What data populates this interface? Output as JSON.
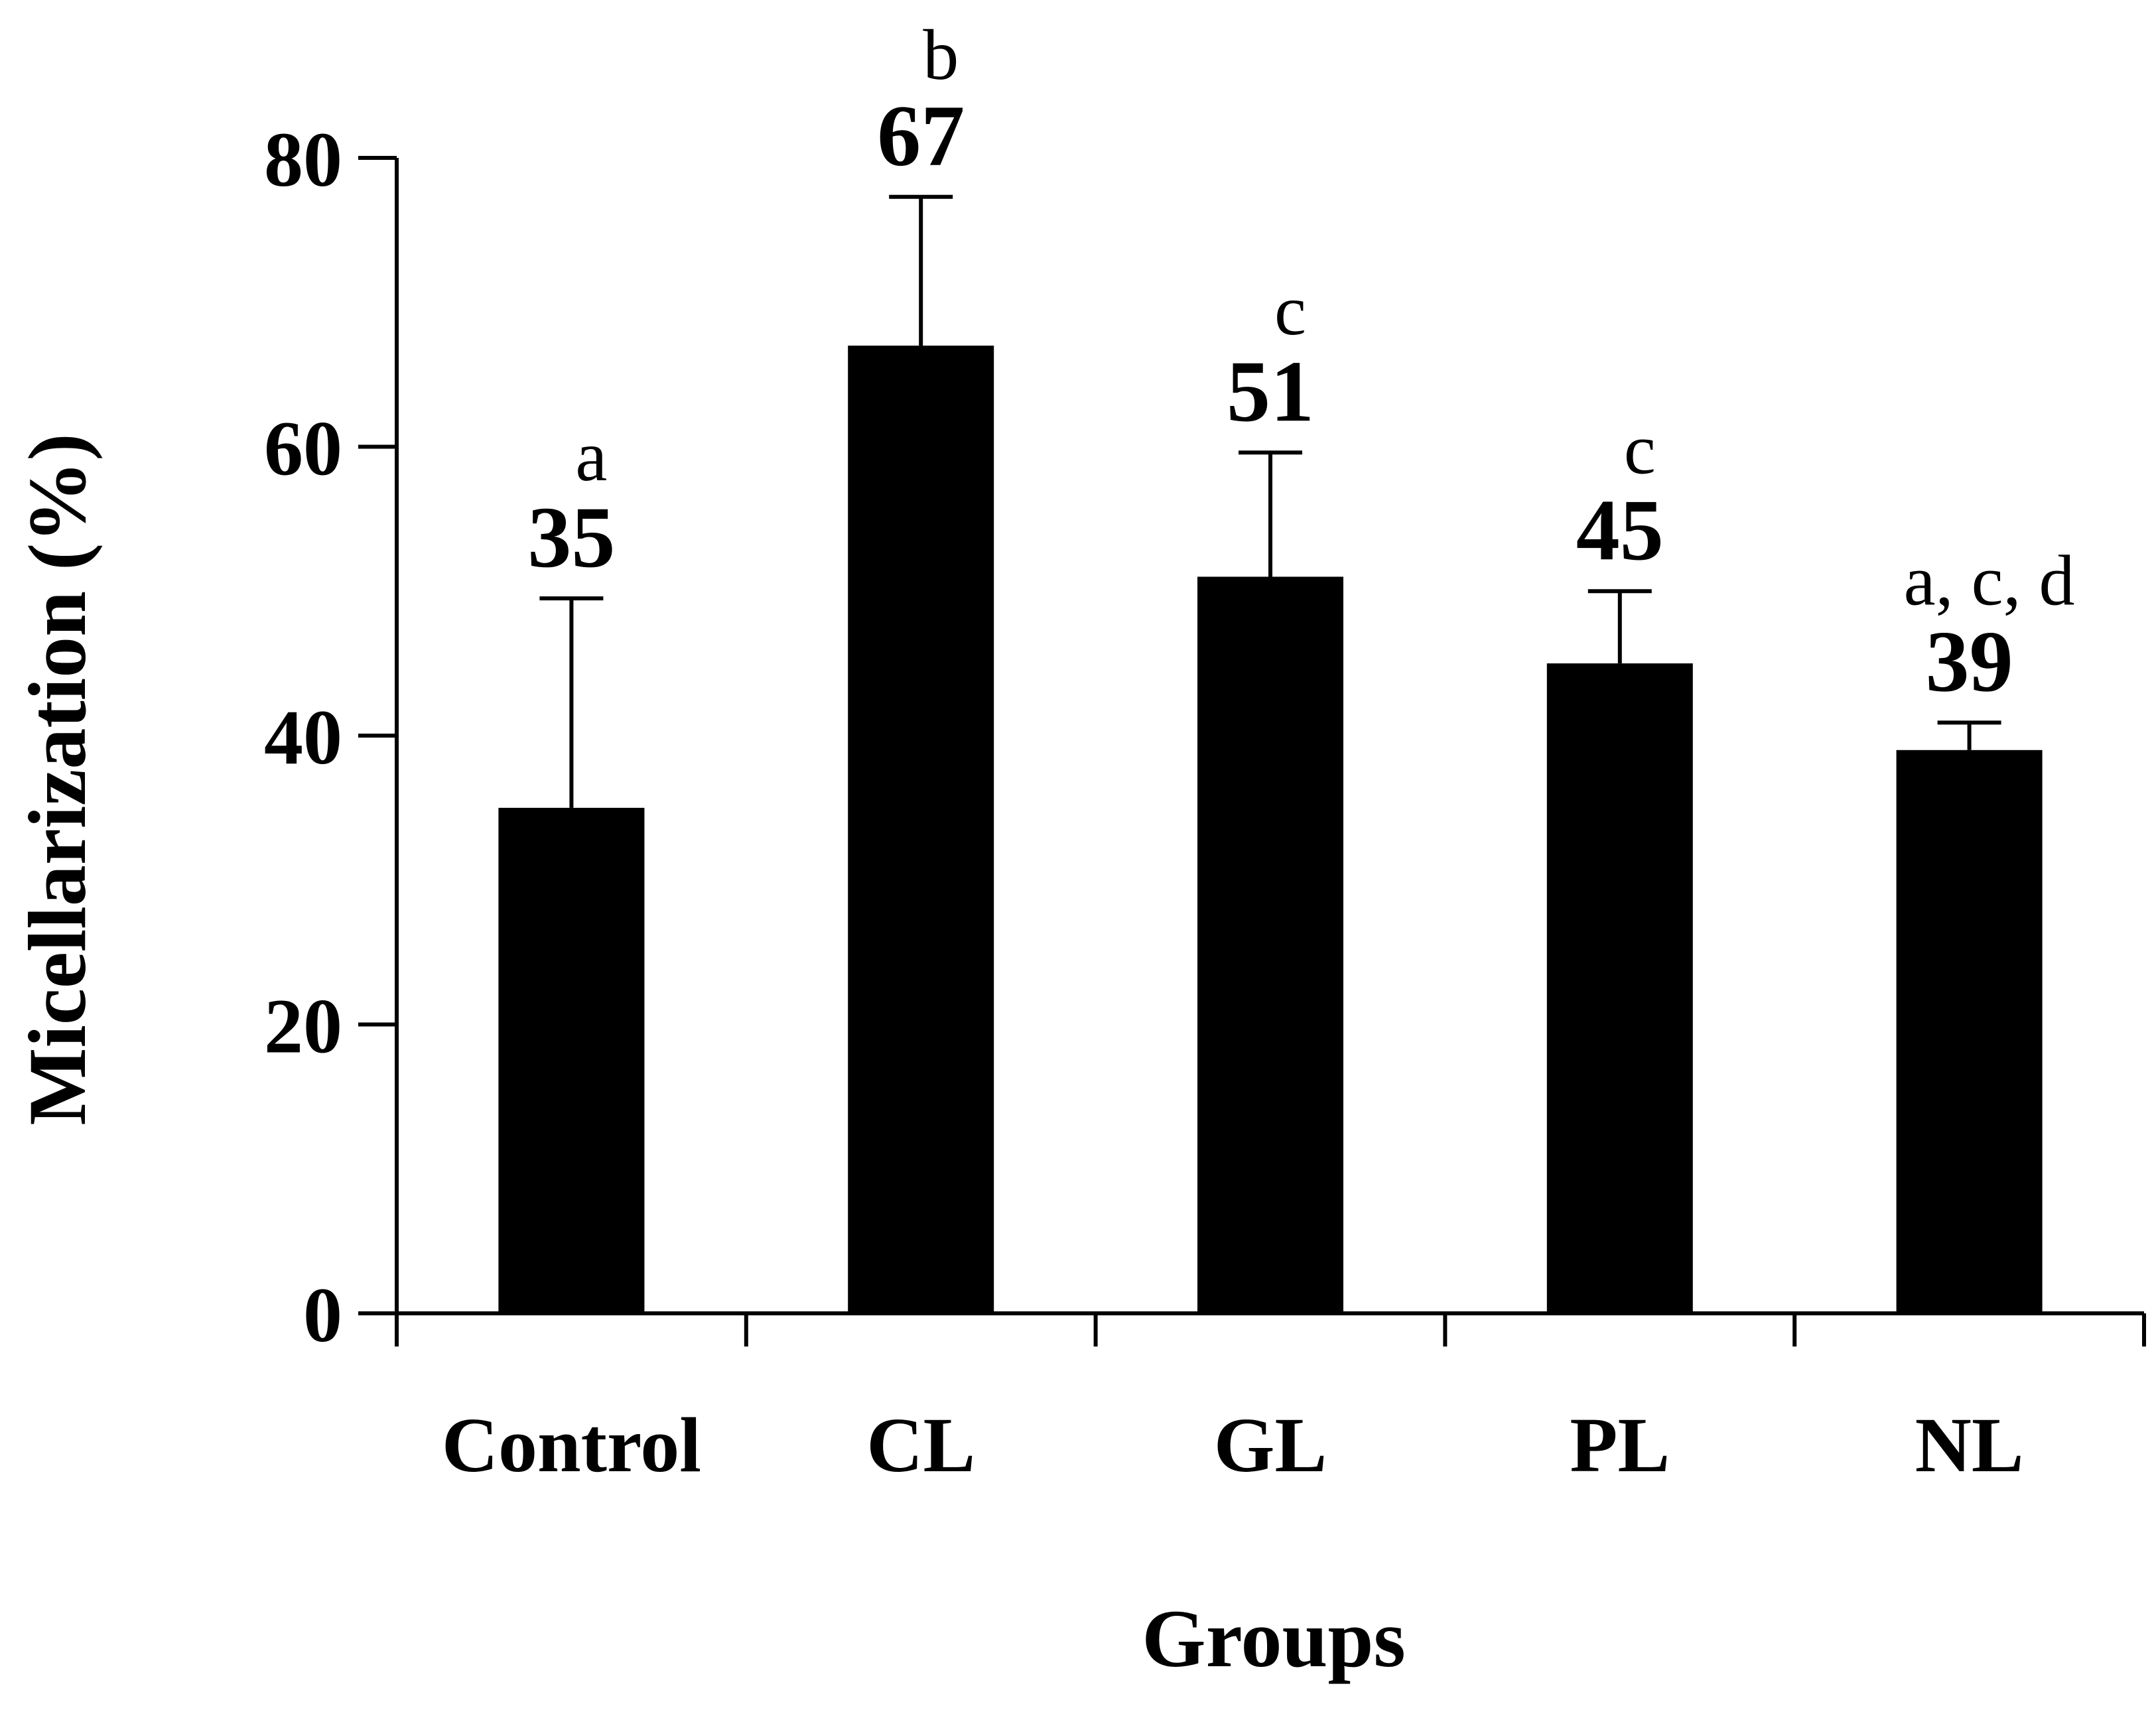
{
  "chart_data": {
    "type": "bar",
    "categories": [
      "Control",
      "CL",
      "GL",
      "PL",
      "NL"
    ],
    "values": [
      35,
      67,
      51,
      45,
      39
    ],
    "error_upper": [
      49.5,
      77.3,
      59.6,
      50,
      40.9
    ],
    "value_labels": [
      "35",
      "67",
      "51",
      "45",
      "39"
    ],
    "significance_labels": [
      "a",
      "b",
      "c",
      "c",
      "a, c, d"
    ],
    "xlabel": "Groups",
    "ylabel": "Micellarization (%)",
    "ylim": [
      0,
      80
    ],
    "yticks": [
      0,
      20,
      40,
      60,
      80
    ],
    "ytick_labels": [
      "0",
      "20",
      "40",
      "60",
      "80"
    ],
    "grid": false,
    "bar_color": "#000000"
  }
}
